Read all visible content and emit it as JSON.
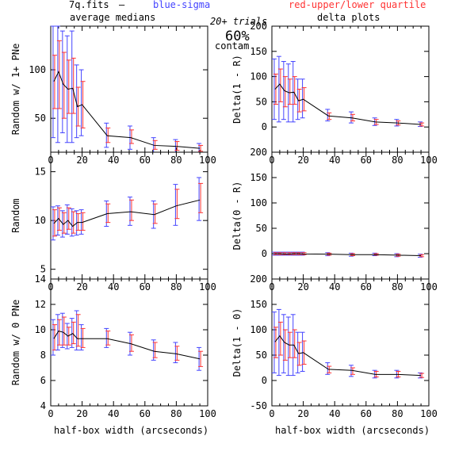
{
  "header": {
    "file_label": "7q.fits",
    "dash": "—",
    "blue_label": "blue-sigma",
    "red_label": "red-upper/lower quartile",
    "blue_color": "#4444ff",
    "red_color": "#ff3333",
    "trials": "20+ trials",
    "percent": "60%",
    "contam": "contam"
  },
  "columns": {
    "left_title": "average medians",
    "right_title": "delta plots"
  },
  "xlabel": "half-box width (arcseconds)",
  "chart_data": [
    {
      "type": "line",
      "panel": "left-top",
      "ylabel": "Random w/ 1+ PNe",
      "xlim": [
        0,
        100
      ],
      "ylim": [
        15,
        145
      ],
      "yticks": [
        50,
        100
      ],
      "x": [
        2,
        5,
        8,
        11,
        14,
        17,
        20,
        36,
        51,
        66,
        80,
        95
      ],
      "y": [
        88,
        98,
        85,
        80,
        81,
        62,
        64,
        32,
        30,
        22,
        21,
        19
      ],
      "sigma_low": [
        30,
        25,
        35,
        25,
        25,
        30,
        32,
        20,
        18,
        14,
        12,
        14
      ],
      "sigma_high": [
        145,
        145,
        140,
        135,
        140,
        105,
        100,
        45,
        42,
        30,
        28,
        24
      ],
      "quart_low": [
        60,
        60,
        50,
        55,
        55,
        42,
        40,
        25,
        24,
        18,
        17,
        16
      ],
      "quart_high": [
        115,
        130,
        118,
        110,
        112,
        82,
        88,
        40,
        38,
        27,
        26,
        22
      ]
    },
    {
      "type": "line",
      "panel": "right-top",
      "ylabel": "Delta(1 - R)",
      "xlim": [
        0,
        100
      ],
      "ylim": [
        -50,
        200
      ],
      "yticks": [
        0,
        50,
        100,
        150,
        200
      ],
      "x": [
        2,
        5,
        8,
        11,
        14,
        17,
        20,
        36,
        51,
        66,
        80,
        95
      ],
      "y": [
        75,
        85,
        72,
        68,
        69,
        52,
        55,
        22,
        18,
        10,
        8,
        5
      ],
      "sigma_low": [
        15,
        10,
        15,
        10,
        10,
        15,
        18,
        12,
        8,
        3,
        2,
        1
      ],
      "sigma_high": [
        135,
        140,
        130,
        125,
        130,
        95,
        95,
        35,
        30,
        18,
        15,
        10
      ],
      "quart_low": [
        45,
        50,
        40,
        45,
        45,
        30,
        32,
        15,
        12,
        5,
        4,
        2
      ],
      "quart_high": [
        105,
        115,
        100,
        95,
        100,
        75,
        78,
        28,
        25,
        15,
        12,
        8
      ]
    },
    {
      "type": "line",
      "panel": "left-middle",
      "ylabel": "Random",
      "xlim": [
        0,
        100
      ],
      "ylim": [
        4,
        17
      ],
      "yticks": [
        5,
        10,
        15
      ],
      "x": [
        2,
        5,
        8,
        11,
        14,
        17,
        20,
        36,
        51,
        66,
        80,
        95
      ],
      "y": [
        9.7,
        10.2,
        9.6,
        10.0,
        9.4,
        9.8,
        9.8,
        10.7,
        10.9,
        10.6,
        11.5,
        12.1
      ],
      "sigma_low": [
        8.0,
        8.5,
        8.3,
        8.6,
        8.4,
        8.5,
        8.6,
        9.4,
        9.5,
        9.2,
        9.5,
        10.0
      ],
      "sigma_high": [
        11.4,
        11.5,
        11.0,
        11.6,
        11.2,
        11.0,
        11.1,
        12.0,
        12.4,
        12.0,
        13.7,
        14.4
      ],
      "quart_low": [
        8.4,
        9.0,
        8.7,
        9.1,
        8.7,
        9.0,
        9.0,
        9.8,
        10.0,
        9.7,
        10.2,
        10.8
      ],
      "quart_high": [
        11.1,
        11.3,
        10.8,
        11.3,
        10.9,
        10.7,
        10.8,
        11.7,
        12.1,
        11.7,
        13.2,
        13.8
      ]
    },
    {
      "type": "line",
      "panel": "right-middle",
      "ylabel": "Delta(0 - R)",
      "xlim": [
        0,
        100
      ],
      "ylim": [
        -50,
        200
      ],
      "yticks": [
        0,
        50,
        100,
        150,
        200
      ],
      "x": [
        2,
        5,
        8,
        11,
        14,
        17,
        20,
        36,
        51,
        66,
        80,
        95
      ],
      "y": [
        0,
        0,
        -0.5,
        -0.5,
        0,
        0,
        -0.5,
        -1,
        -2,
        -2,
        -3,
        -4
      ],
      "sigma_low": [
        -3,
        -3,
        -3,
        -3,
        -3,
        -3,
        -3,
        -4,
        -5,
        -4,
        -6,
        -7
      ],
      "sigma_high": [
        3,
        3,
        3,
        3,
        3,
        3,
        3,
        2,
        1,
        1,
        0,
        -1
      ],
      "quart_low": [
        -2,
        -2,
        -2,
        -2,
        -2,
        -2,
        -2,
        -3,
        -4,
        -3,
        -5,
        -6
      ],
      "quart_high": [
        2,
        2,
        2,
        2,
        2,
        2,
        2,
        1,
        0,
        0,
        -1,
        -2
      ]
    },
    {
      "type": "line",
      "panel": "left-bottom",
      "ylabel": "Random w/ 0 PNe",
      "xlim": [
        0,
        100
      ],
      "ylim": [
        4,
        14
      ],
      "yticks": [
        4,
        6,
        8,
        10,
        12,
        14
      ],
      "x": [
        2,
        5,
        8,
        11,
        14,
        17,
        20,
        36,
        51,
        66,
        80,
        95
      ],
      "y": [
        9.3,
        9.9,
        9.8,
        9.5,
        9.7,
        9.3,
        9.3,
        9.3,
        8.9,
        8.3,
        8.1,
        7.7
      ],
      "sigma_low": [
        8.0,
        8.4,
        8.6,
        8.5,
        8.6,
        8.4,
        8.4,
        8.6,
        8.0,
        7.6,
        7.4,
        6.8
      ],
      "sigma_high": [
        10.8,
        11.2,
        11.3,
        10.5,
        10.9,
        11.5,
        10.4,
        10.1,
        9.8,
        9.2,
        9.0,
        8.6
      ],
      "quart_low": [
        8.4,
        8.8,
        8.8,
        8.8,
        8.9,
        8.7,
        8.6,
        8.8,
        8.3,
        7.8,
        7.6,
        7.1
      ],
      "quart_high": [
        10.4,
        10.8,
        11.0,
        10.2,
        10.6,
        11.2,
        10.1,
        9.9,
        9.6,
        9.0,
        8.7,
        8.3
      ]
    },
    {
      "type": "line",
      "panel": "right-bottom",
      "ylabel": "Delta(1 - 0)",
      "xlim": [
        0,
        100
      ],
      "ylim": [
        -50,
        200
      ],
      "yticks": [
        -50,
        0,
        50,
        100,
        150,
        200
      ],
      "x": [
        2,
        5,
        8,
        11,
        14,
        17,
        20,
        36,
        51,
        66,
        80,
        95
      ],
      "y": [
        76,
        88,
        75,
        70,
        70,
        53,
        55,
        22,
        20,
        12,
        12,
        10
      ],
      "sigma_low": [
        15,
        10,
        15,
        10,
        10,
        15,
        18,
        12,
        8,
        5,
        5,
        5
      ],
      "sigma_high": [
        135,
        140,
        130,
        125,
        130,
        95,
        95,
        35,
        30,
        20,
        20,
        15
      ],
      "quart_low": [
        45,
        50,
        40,
        45,
        45,
        30,
        32,
        15,
        12,
        7,
        7,
        6
      ],
      "quart_high": [
        105,
        115,
        100,
        95,
        100,
        75,
        78,
        28,
        25,
        18,
        18,
        14
      ]
    }
  ]
}
